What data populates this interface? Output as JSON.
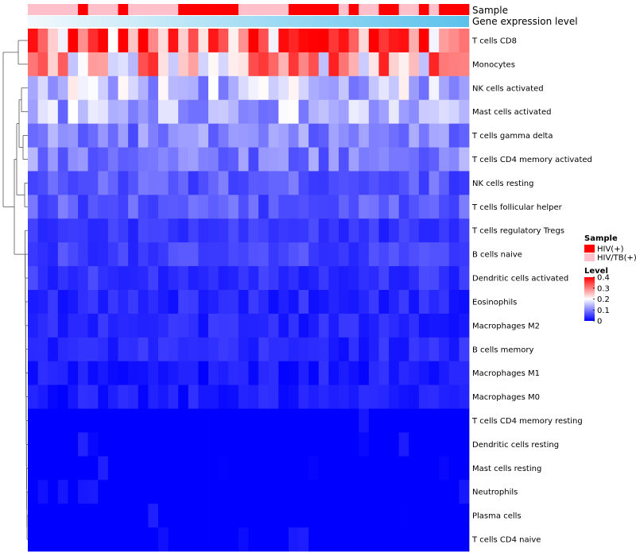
{
  "chart_data": {
    "type": "heatmap",
    "title": "",
    "annotation_labels": {
      "sample": "Sample",
      "expression": "Gene expression level"
    },
    "rows": [
      "T cells CD8",
      "Monocytes",
      "NK cells activated",
      "Mast cells activated",
      "T cells gamma delta",
      "T cells CD4 memory activated",
      "NK cells resting",
      "T cells follicular helper",
      "T cells regulatory  Tregs",
      "B cells naive",
      "Dendritic cells activated",
      "Eosinophils",
      "Macrophages M2",
      "B cells memory",
      "Macrophages M1",
      "Macrophages M0",
      "T cells CD4 memory resting",
      "Dendritic cells resting",
      "Mast cells resting",
      "Neutrophils",
      "Plasma cells",
      "T cells CD4 naive"
    ],
    "n_columns": 44,
    "sample_groups": [
      "HIV/TB(+)",
      "HIV/TB(+)",
      "HIV/TB(+)",
      "HIV/TB(+)",
      "HIV/TB(+)",
      "HIV(+)",
      "HIV/TB(+)",
      "HIV/TB(+)",
      "HIV/TB(+)",
      "HIV(+)",
      "HIV/TB(+)",
      "HIV/TB(+)",
      "HIV/TB(+)",
      "HIV/TB(+)",
      "HIV/TB(+)",
      "HIV(+)",
      "HIV(+)",
      "HIV(+)",
      "HIV(+)",
      "HIV(+)",
      "HIV(+)",
      "HIV/TB(+)",
      "HIV/TB(+)",
      "HIV/TB(+)",
      "HIV/TB(+)",
      "HIV/TB(+)",
      "HIV(+)",
      "HIV(+)",
      "HIV(+)",
      "HIV(+)",
      "HIV(+)",
      "HIV/TB(+)",
      "HIV(+)",
      "HIV/TB(+)",
      "HIV/TB(+)",
      "HIV(+)",
      "HIV(+)",
      "HIV/TB(+)",
      "HIV/TB(+)",
      "HIV(+)",
      "HIV/TB(+)",
      "HIV(+)",
      "HIV(+)",
      "HIV(+)"
    ],
    "row_value_profile": [
      0.32,
      0.26,
      0.15,
      0.14,
      0.1,
      0.1,
      0.07,
      0.07,
      0.04,
      0.05,
      0.04,
      0.03,
      0.03,
      0.03,
      0.02,
      0.02,
      0.01,
      0.01,
      0.005,
      0.005,
      0.01,
      0.005
    ],
    "legend": {
      "sample_title": "Sample",
      "sample_entries": [
        {
          "label": "HIV(+)",
          "color": "#ff0000"
        },
        {
          "label": "HIV/TB(+)",
          "color": "#ffc0cb"
        }
      ],
      "level_title": "Level",
      "level_ticks": [
        0,
        0.1,
        0.2,
        0.3,
        0.4
      ],
      "level_tick_labels": [
        "0",
        "0.1",
        "0.2",
        "0.3",
        "0.4"
      ],
      "level_range": [
        0,
        0.4
      ]
    },
    "colors": {
      "low": "#0000ff",
      "mid": "#ffffff",
      "high": "#ff0000",
      "mid_value": 0.2
    }
  }
}
